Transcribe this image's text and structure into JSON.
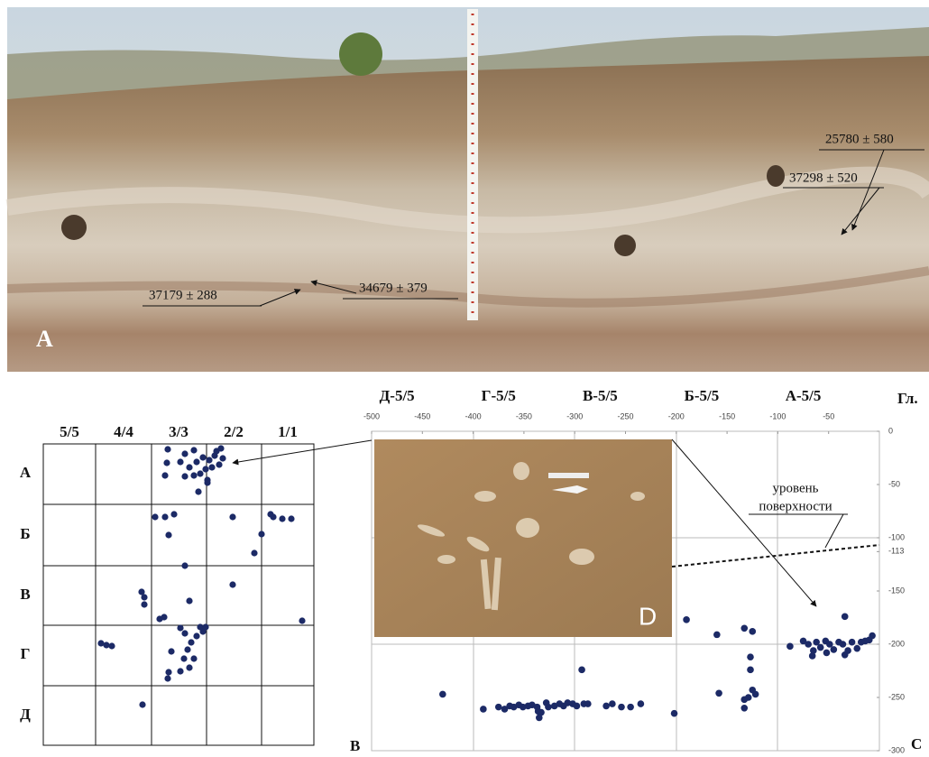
{
  "photo": {
    "panel_label": "A",
    "dates": [
      "25780 ± 580",
      "37298 ± 520",
      "37179 ± 288",
      "34679 ± 379"
    ]
  },
  "plan": {
    "panel_label": "B",
    "columns": [
      "5/5",
      "4/4",
      "3/3",
      "2/2",
      "1/1"
    ],
    "rows": [
      "А",
      "Б",
      "В",
      "Г",
      "Д"
    ]
  },
  "chart_data": {
    "type": "scatter",
    "panel_label": "C",
    "inset_label": "D",
    "ylabel": "Гл.",
    "column_labels": [
      "Д-5/5",
      "Г-5/5",
      "В-5/5",
      "Б-5/5",
      "А-5/5"
    ],
    "annotation": [
      "уровень",
      "поверхности"
    ],
    "color": "#1c2a66",
    "xlim": [
      -500,
      0
    ],
    "ylim": [
      0,
      -300
    ],
    "xticks": [
      -500,
      -450,
      -400,
      -350,
      -300,
      -250,
      -200,
      -150,
      -100,
      -50
    ],
    "yticks": [
      0,
      -50,
      -100,
      -113,
      -150,
      -200,
      -250,
      -300
    ],
    "x": [
      -88,
      -75,
      -70,
      -65,
      -62,
      -58,
      -53,
      -49,
      -45,
      -40,
      -36,
      -31,
      -27,
      -22,
      -18,
      -14,
      -10,
      -66,
      -52,
      -34,
      -7,
      -34,
      -190,
      -160,
      -133,
      -125,
      -127,
      -127,
      -125,
      -122,
      -129,
      -133,
      -133,
      -158,
      -430,
      -390,
      -375,
      -369,
      -364,
      -360,
      -355,
      -351,
      -346,
      -342,
      -337,
      -335,
      -333,
      -328,
      -326,
      -320,
      -315,
      -311,
      -307,
      -302,
      -298,
      -293,
      -291,
      -287,
      -269,
      -263,
      -254,
      -245,
      -235,
      -202,
      -336
    ],
    "values": [
      -202,
      -197,
      -200,
      -206,
      -198,
      -203,
      -197,
      -200,
      -205,
      -198,
      -200,
      -206,
      -198,
      -204,
      -198,
      -197,
      -196,
      -211,
      -208,
      -210,
      -192,
      -174,
      -177,
      -191,
      -185,
      -188,
      -212,
      -224,
      -243,
      -247,
      -250,
      -260,
      -252,
      -246,
      -247,
      -261,
      -259,
      -261,
      -258,
      -259,
      -257,
      -259,
      -258,
      -257,
      -259,
      -269,
      -264,
      -255,
      -259,
      -258,
      -256,
      -258,
      -255,
      -256,
      -258,
      -224,
      -256,
      -256,
      -258,
      -256,
      -259,
      -259,
      -256,
      -265,
      -263
    ]
  }
}
